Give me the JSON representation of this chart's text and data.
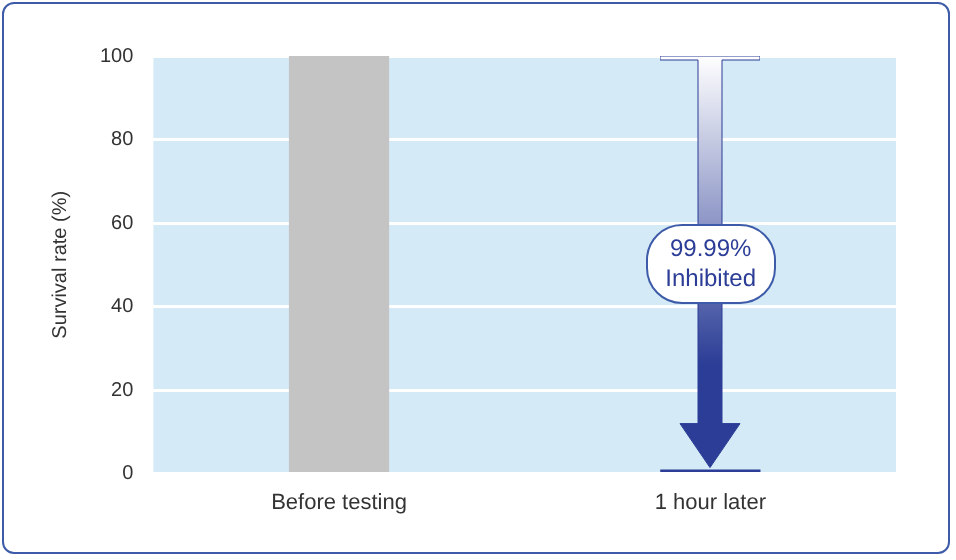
{
  "chart_data": {
    "type": "bar",
    "ylabel": "Survival rate (%)",
    "categories": [
      "Before testing",
      "1 hour later"
    ],
    "values": [
      100,
      1
    ],
    "colors": [
      "#c4c4c4",
      "#2b3d96"
    ],
    "ylim": [
      0,
      100
    ],
    "yticks": [
      0,
      20,
      40,
      60,
      80,
      100
    ],
    "grid": "y",
    "legend": false,
    "annotations": [
      "99.99%\nInhibited"
    ]
  }
}
